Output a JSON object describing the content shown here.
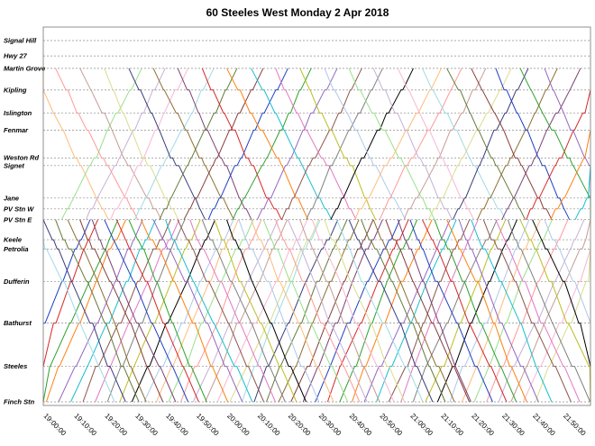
{
  "chart_data": {
    "type": "line",
    "title": "60  Steeles  West Monday  2 Apr 2018",
    "xlabel": "",
    "ylabel": "",
    "grid": true,
    "x_range": [
      "19:00:00",
      "21:55:00"
    ],
    "x_ticks": [
      "19:00:00",
      "19:10:00",
      "19:20:00",
      "19:30:00",
      "19:40:00",
      "19:50:00",
      "20:00:00",
      "20:10:00",
      "20:20:00",
      "20:30:00",
      "20:40:00",
      "20:50:00",
      "21:00:00",
      "21:10:00",
      "21:20:00",
      "21:30:00",
      "21:40:00",
      "21:50:00"
    ],
    "stops": [
      "Signal Hill",
      "Hwy 27",
      "Martin Grove",
      "Kipling",
      "Islington",
      "Fenmar",
      "Weston Rd",
      "Signet",
      "Jane",
      "PV Stn W",
      "PV Stn E",
      "Keele",
      "Petrolia",
      "Dufferin",
      "Bathurst",
      "Steeles",
      "Finch Stn"
    ],
    "stop_positions_km": {
      "Signal Hill": 0.0,
      "Hwy 27": 1.0,
      "Martin Grove": 1.8,
      "Kipling": 3.2,
      "Islington": 4.7,
      "Fenmar": 5.8,
      "Weston Rd": 7.6,
      "Signet": 8.1,
      "Jane": 10.2,
      "PV Stn W": 10.9,
      "PV Stn E": 11.6,
      "Keele": 12.9,
      "Petrolia": 13.5,
      "Dufferin": 15.6,
      "Bathurst": 18.3,
      "Steeles": 21.1,
      "Finch Stn": 23.4
    },
    "series_colors": [
      "#1f3fbf",
      "#d62728",
      "#2ca02c",
      "#ff7f0e",
      "#9467bd",
      "#17becf",
      "#8c564b",
      "#e377c2",
      "#7f7f7f",
      "#bcbd22",
      "#000000",
      "#aec7e8",
      "#ffbb78",
      "#98df8a",
      "#ff9896",
      "#c5b0d5",
      "#c49c94",
      "#f7b6d2",
      "#dbdb8d",
      "#9edae5",
      "#393b79",
      "#637939",
      "#8c6d31",
      "#843c39",
      "#7b4173"
    ],
    "trip_pattern": {
      "east_segment": "Martin Grove ↔ Finch Stn",
      "west_segment": "Signal Hill/Martin Grove ↔ Finch Stn",
      "westbound_departures_from_finch": [
        "19:01",
        "19:05",
        "19:09",
        "19:13",
        "19:17",
        "19:21",
        "19:25",
        "19:29",
        "19:33",
        "19:37",
        "19:41",
        "19:45",
        "19:49",
        "19:53",
        "19:57",
        "20:01",
        "20:05",
        "20:09",
        "20:13",
        "20:17",
        "20:21",
        "20:25",
        "20:29",
        "20:33",
        "20:37",
        "20:41",
        "20:45",
        "20:49",
        "20:53",
        "20:57",
        "21:01",
        "21:05",
        "21:09",
        "21:13",
        "21:17",
        "21:21",
        "21:25",
        "21:29",
        "21:33",
        "21:37",
        "21:41",
        "21:45",
        "21:49",
        "21:53"
      ],
      "eastbound_departures_from_martin_grove": [
        "19:00",
        "19:08",
        "19:16",
        "19:24",
        "19:32",
        "19:40",
        "19:48",
        "19:56",
        "20:04",
        "20:12",
        "20:20",
        "20:28",
        "20:36",
        "20:44",
        "20:52",
        "21:00",
        "21:08",
        "21:16",
        "21:24",
        "21:32",
        "21:40",
        "21:48"
      ],
      "eastbound_departures_from_pv_stn": [
        "19:02",
        "19:06",
        "19:10",
        "19:14",
        "19:18",
        "19:22",
        "19:26",
        "19:30",
        "19:34",
        "19:38",
        "19:42",
        "19:46",
        "19:50",
        "19:54",
        "19:58",
        "20:02",
        "20:06",
        "20:10",
        "20:14",
        "20:18",
        "20:22",
        "20:26",
        "20:30",
        "20:34",
        "20:38",
        "20:42",
        "20:46",
        "20:50",
        "20:54",
        "20:58",
        "21:02",
        "21:06",
        "21:10",
        "21:14",
        "21:18",
        "21:22",
        "21:26",
        "21:30",
        "21:34",
        "21:38",
        "21:42",
        "21:46",
        "21:50"
      ],
      "run_time_full_route_min": 50,
      "run_time_finch_to_pv_min": 26
    }
  }
}
